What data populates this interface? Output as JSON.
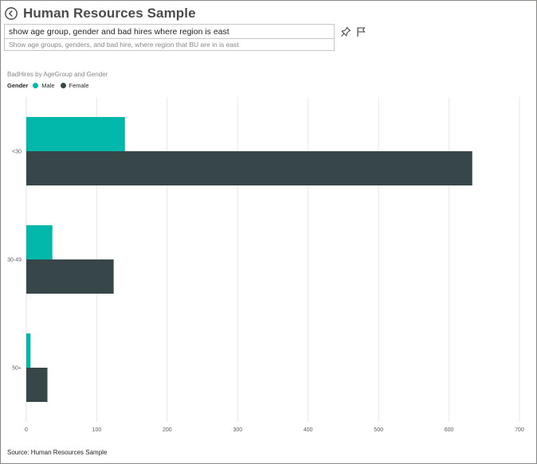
{
  "header": {
    "title": "Human Resources Sample",
    "back_icon": "back-arrow-circle-icon"
  },
  "qa": {
    "question": "show age group, gender and bad hires where region is east",
    "restatement": "Show age groups, genders, and bad hire, where region that BU are in is east"
  },
  "toolbar": {
    "pin_icon": "pin-icon",
    "flag_icon": "flag-icon"
  },
  "chart_data": {
    "type": "bar",
    "orientation": "horizontal",
    "title": "BadHires by AgeGroup and Gender",
    "legend_title": "Gender",
    "categories": [
      "<30",
      "30-49",
      "50+"
    ],
    "series": [
      {
        "name": "Male",
        "color": "#01b8aa",
        "values": [
          140,
          37,
          6
        ]
      },
      {
        "name": "Female",
        "color": "#374649",
        "values": [
          633,
          124,
          30
        ]
      }
    ],
    "xlim": [
      0,
      700
    ],
    "xticks": [
      "0",
      "100",
      "200",
      "300",
      "400",
      "500",
      "600",
      "700"
    ],
    "grid": true,
    "legend_position": "top-left"
  },
  "footer": {
    "source": "Source: Human Resources Sample"
  }
}
